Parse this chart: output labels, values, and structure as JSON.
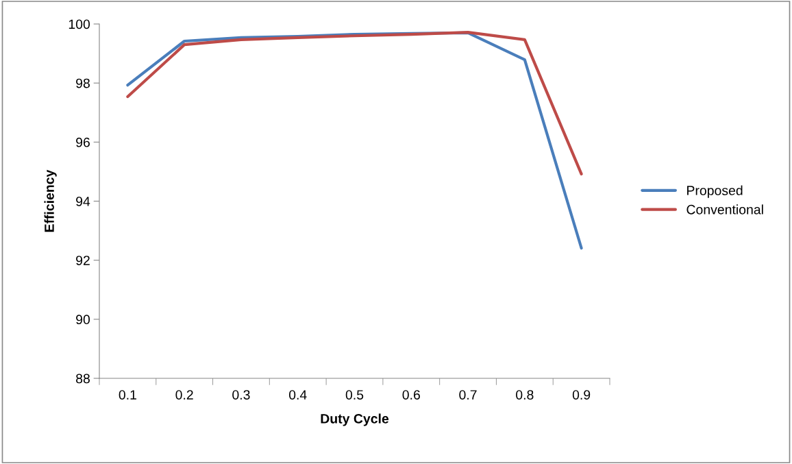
{
  "chart_data": {
    "type": "line",
    "xlabel": "Duty Cycle",
    "ylabel": "Efficiency",
    "categories": [
      "0.1",
      "0.2",
      "0.3",
      "0.4",
      "0.5",
      "0.6",
      "0.7",
      "0.8",
      "0.9"
    ],
    "series": [
      {
        "name": "Proposed",
        "color": "#4a7ebb",
        "values": [
          97.93,
          99.42,
          99.54,
          99.58,
          99.65,
          99.68,
          99.7,
          98.79,
          92.41
        ]
      },
      {
        "name": "Conventional",
        "color": "#be4b48",
        "values": [
          97.54,
          99.3,
          99.47,
          99.54,
          99.6,
          99.65,
          99.72,
          99.47,
          94.92
        ]
      }
    ],
    "ylim": [
      88,
      100
    ],
    "yticks": [
      88,
      90,
      92,
      94,
      96,
      98,
      100
    ],
    "grid": false,
    "legend": "right",
    "marker": "none",
    "line_style": "solid"
  }
}
